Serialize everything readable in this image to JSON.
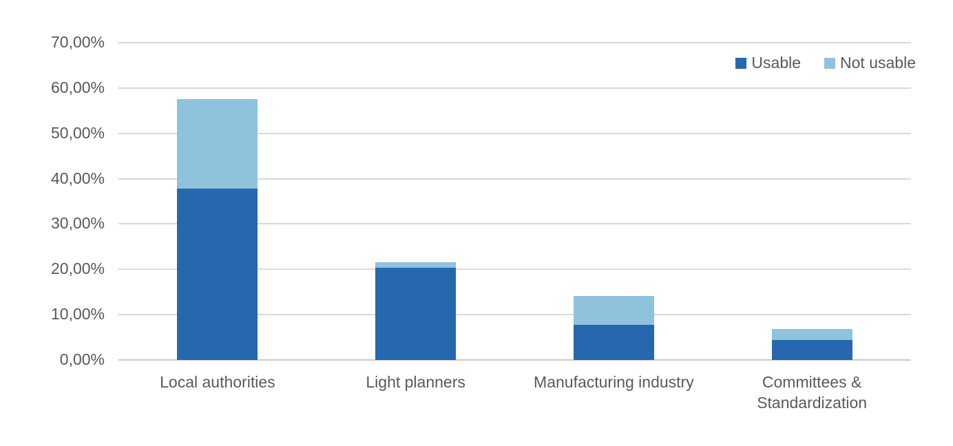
{
  "chart_data": {
    "type": "bar",
    "stacked": true,
    "categories": [
      "Local authorities",
      "Light planners",
      "Manufacturing industry",
      "Committees & Standardization"
    ],
    "series": [
      {
        "name": "Usable",
        "color": "#2667AD",
        "values": [
          37.8,
          20.4,
          7.7,
          4.4
        ]
      },
      {
        "name": "Not usable",
        "color": "#8FC2DC",
        "values": [
          19.7,
          1.1,
          6.4,
          2.4
        ]
      }
    ],
    "stack_totals": [
      57.5,
      21.5,
      14.1,
      6.8
    ],
    "title": "",
    "xlabel": "",
    "ylabel": "",
    "ylim": [
      0,
      70
    ],
    "y_tick_step": 10,
    "y_tick_labels": [
      "0,00%",
      "10,00%",
      "20,00%",
      "30,00%",
      "40,00%",
      "50,00%",
      "60,00%",
      "70,00%"
    ],
    "number_format": "comma-decimal-percent",
    "grid": true,
    "gridline_color": "#d9d9d9",
    "axis_text_color": "#595959",
    "legend_position": "top-right",
    "legend": [
      {
        "label": "Usable",
        "color": "#2667AD"
      },
      {
        "label": "Not usable",
        "color": "#8FC2DC"
      }
    ],
    "background_color": "#ffffff"
  }
}
